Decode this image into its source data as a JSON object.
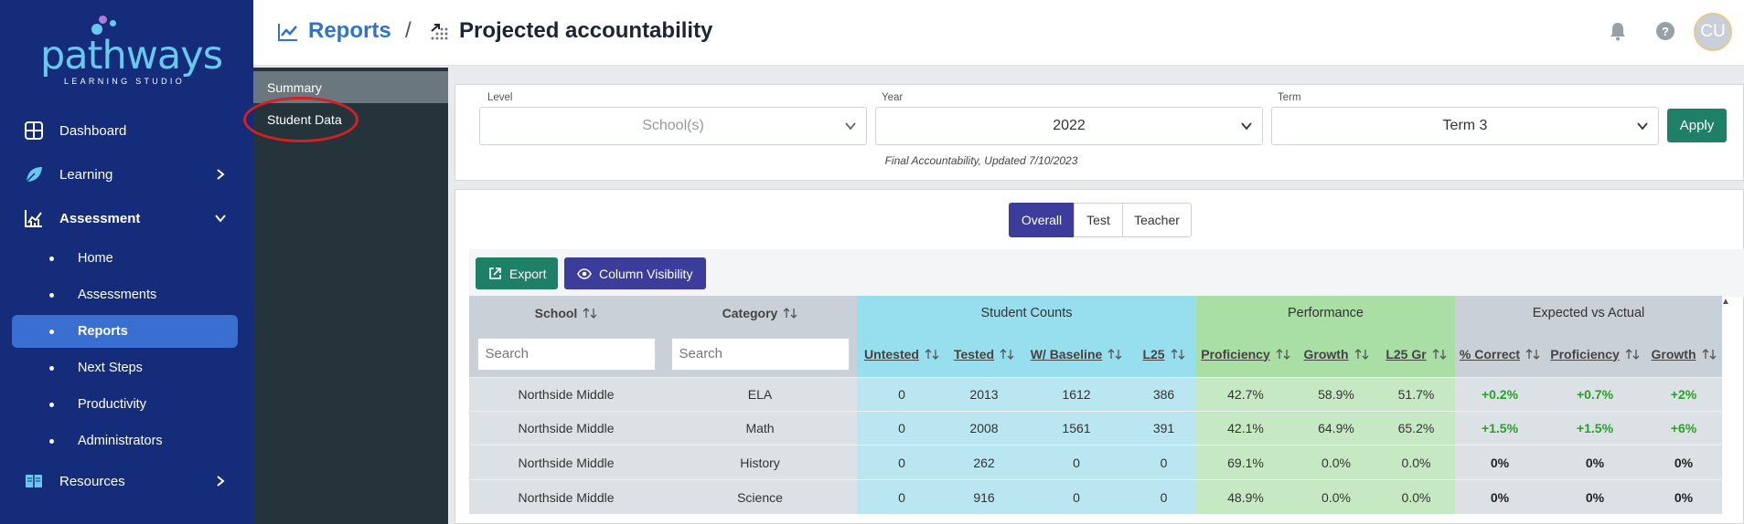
{
  "brand": {
    "name": "pathways",
    "subtitle": "LEARNING STUDIO"
  },
  "sidebar": {
    "items": [
      {
        "label": "Dashboard",
        "icon": "dashboard-icon"
      },
      {
        "label": "Learning",
        "icon": "leaf-icon"
      },
      {
        "label": "Assessment",
        "icon": "chart-icon"
      },
      {
        "label": "Resources",
        "icon": "book-icon"
      }
    ],
    "sub_items": [
      {
        "label": "Home"
      },
      {
        "label": "Assessments"
      },
      {
        "label": "Reports",
        "active": true
      },
      {
        "label": "Next Steps"
      },
      {
        "label": "Productivity"
      },
      {
        "label": "Administrators"
      }
    ]
  },
  "header": {
    "crumb1": "Reports",
    "separator": "/",
    "crumb2": "Projected accountability",
    "avatar": "CU"
  },
  "subnav": {
    "items": [
      {
        "label": "Summary",
        "active": true
      },
      {
        "label": "Student Data"
      }
    ]
  },
  "filters": {
    "level": {
      "label": "Level",
      "placeholder": "School(s)"
    },
    "year": {
      "label": "Year",
      "value": "2022"
    },
    "term": {
      "label": "Term",
      "value": "Term 3"
    },
    "apply": "Apply",
    "note": "Final Accountability, Updated 7/10/2023"
  },
  "tabs": [
    {
      "label": "Overall",
      "active": true
    },
    {
      "label": "Test"
    },
    {
      "label": "Teacher"
    }
  ],
  "toolbar": {
    "export": "Export",
    "column_visibility": "Column Visibility"
  },
  "table": {
    "groups": {
      "student_counts": "Student Counts",
      "performance": "Performance",
      "expected": "Expected vs Actual"
    },
    "columns": {
      "school": "School",
      "category": "Category",
      "untested": "Untested",
      "tested": "Tested",
      "w_baseline": "W/ Baseline",
      "l25": "L25",
      "proficiency": "Proficiency",
      "growth": "Growth",
      "l25_gr": "L25 Gr",
      "pct_correct": "% Correct",
      "ea_proficiency": "Proficiency",
      "ea_growth": "Growth"
    },
    "search_placeholder": "Search",
    "rows": [
      {
        "school": "Northside Middle",
        "category": "ELA",
        "untested": "0",
        "tested": "2013",
        "w_baseline": "1612",
        "l25": "386",
        "proficiency": "42.7%",
        "growth": "58.9%",
        "l25_gr": "51.7%",
        "pct_correct": "+0.2%",
        "ea_proficiency": "+0.7%",
        "ea_growth": "+2%"
      },
      {
        "school": "Northside Middle",
        "category": "Math",
        "untested": "0",
        "tested": "2008",
        "w_baseline": "1561",
        "l25": "391",
        "proficiency": "42.1%",
        "growth": "64.9%",
        "l25_gr": "65.2%",
        "pct_correct": "+1.5%",
        "ea_proficiency": "+1.5%",
        "ea_growth": "+6%"
      },
      {
        "school": "Northside Middle",
        "category": "History",
        "untested": "0",
        "tested": "262",
        "w_baseline": "0",
        "l25": "0",
        "proficiency": "69.1%",
        "growth": "0.0%",
        "l25_gr": "0.0%",
        "pct_correct": "0%",
        "ea_proficiency": "0%",
        "ea_growth": "0%"
      },
      {
        "school": "Northside Middle",
        "category": "Science",
        "untested": "0",
        "tested": "916",
        "w_baseline": "0",
        "l25": "0",
        "proficiency": "48.9%",
        "growth": "0.0%",
        "l25_gr": "0.0%",
        "pct_correct": "0%",
        "ea_proficiency": "0%",
        "ea_growth": "0%"
      }
    ]
  },
  "colors": {
    "sidebar": "#142c7a",
    "accent": "#3a6fd1",
    "apply": "#1d8067",
    "tab_active": "#3c3d9b",
    "positive": "#2aa02a",
    "annotation": "#d42020"
  }
}
